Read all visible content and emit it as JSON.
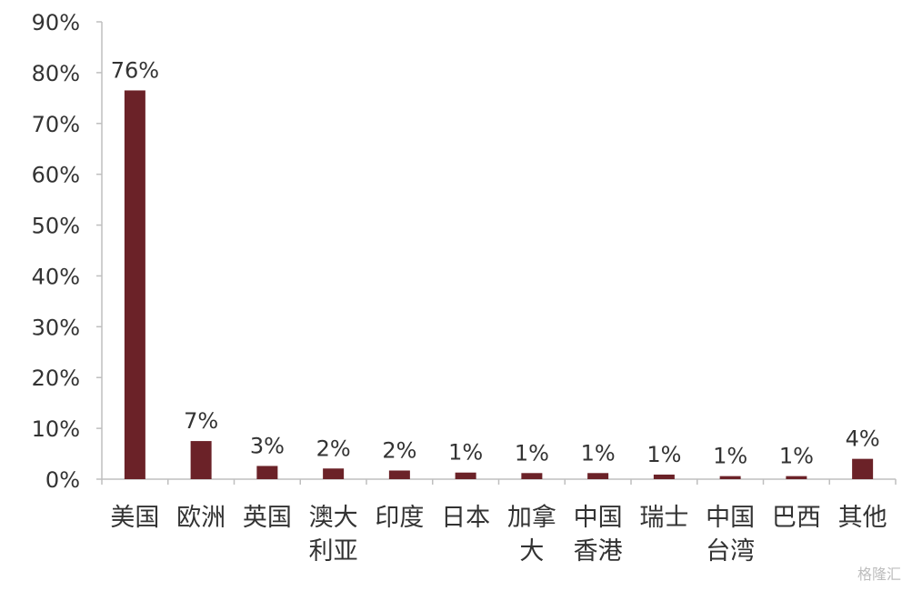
{
  "chart_data": {
    "type": "bar",
    "categories": [
      [
        "美国"
      ],
      [
        "欧洲"
      ],
      [
        "英国"
      ],
      [
        "澳大",
        "利亚"
      ],
      [
        "印度"
      ],
      [
        "日本"
      ],
      [
        "加拿",
        "大"
      ],
      [
        "中国",
        "香港"
      ],
      [
        "瑞士"
      ],
      [
        "中国",
        "台湾"
      ],
      [
        "巴西"
      ],
      [
        "其他"
      ]
    ],
    "values": [
      76.5,
      7.5,
      2.6,
      2.1,
      1.7,
      1.3,
      1.2,
      1.2,
      0.9,
      0.6,
      0.6,
      4.0
    ],
    "data_labels": [
      "76%",
      "7%",
      "3%",
      "2%",
      "2%",
      "1%",
      "1%",
      "1%",
      "1%",
      "1%",
      "1%",
      "4%"
    ],
    "ylim": [
      0,
      90
    ],
    "yticks": [
      0,
      10,
      20,
      30,
      40,
      50,
      60,
      70,
      80,
      90
    ],
    "ytick_labels": [
      "0%",
      "10%",
      "20%",
      "30%",
      "40%",
      "50%",
      "60%",
      "70%",
      "80%",
      "90%"
    ],
    "title": "",
    "xlabel": "",
    "ylabel": "",
    "grid": false,
    "bar_color": "#6b2228"
  },
  "watermark": "格隆汇"
}
